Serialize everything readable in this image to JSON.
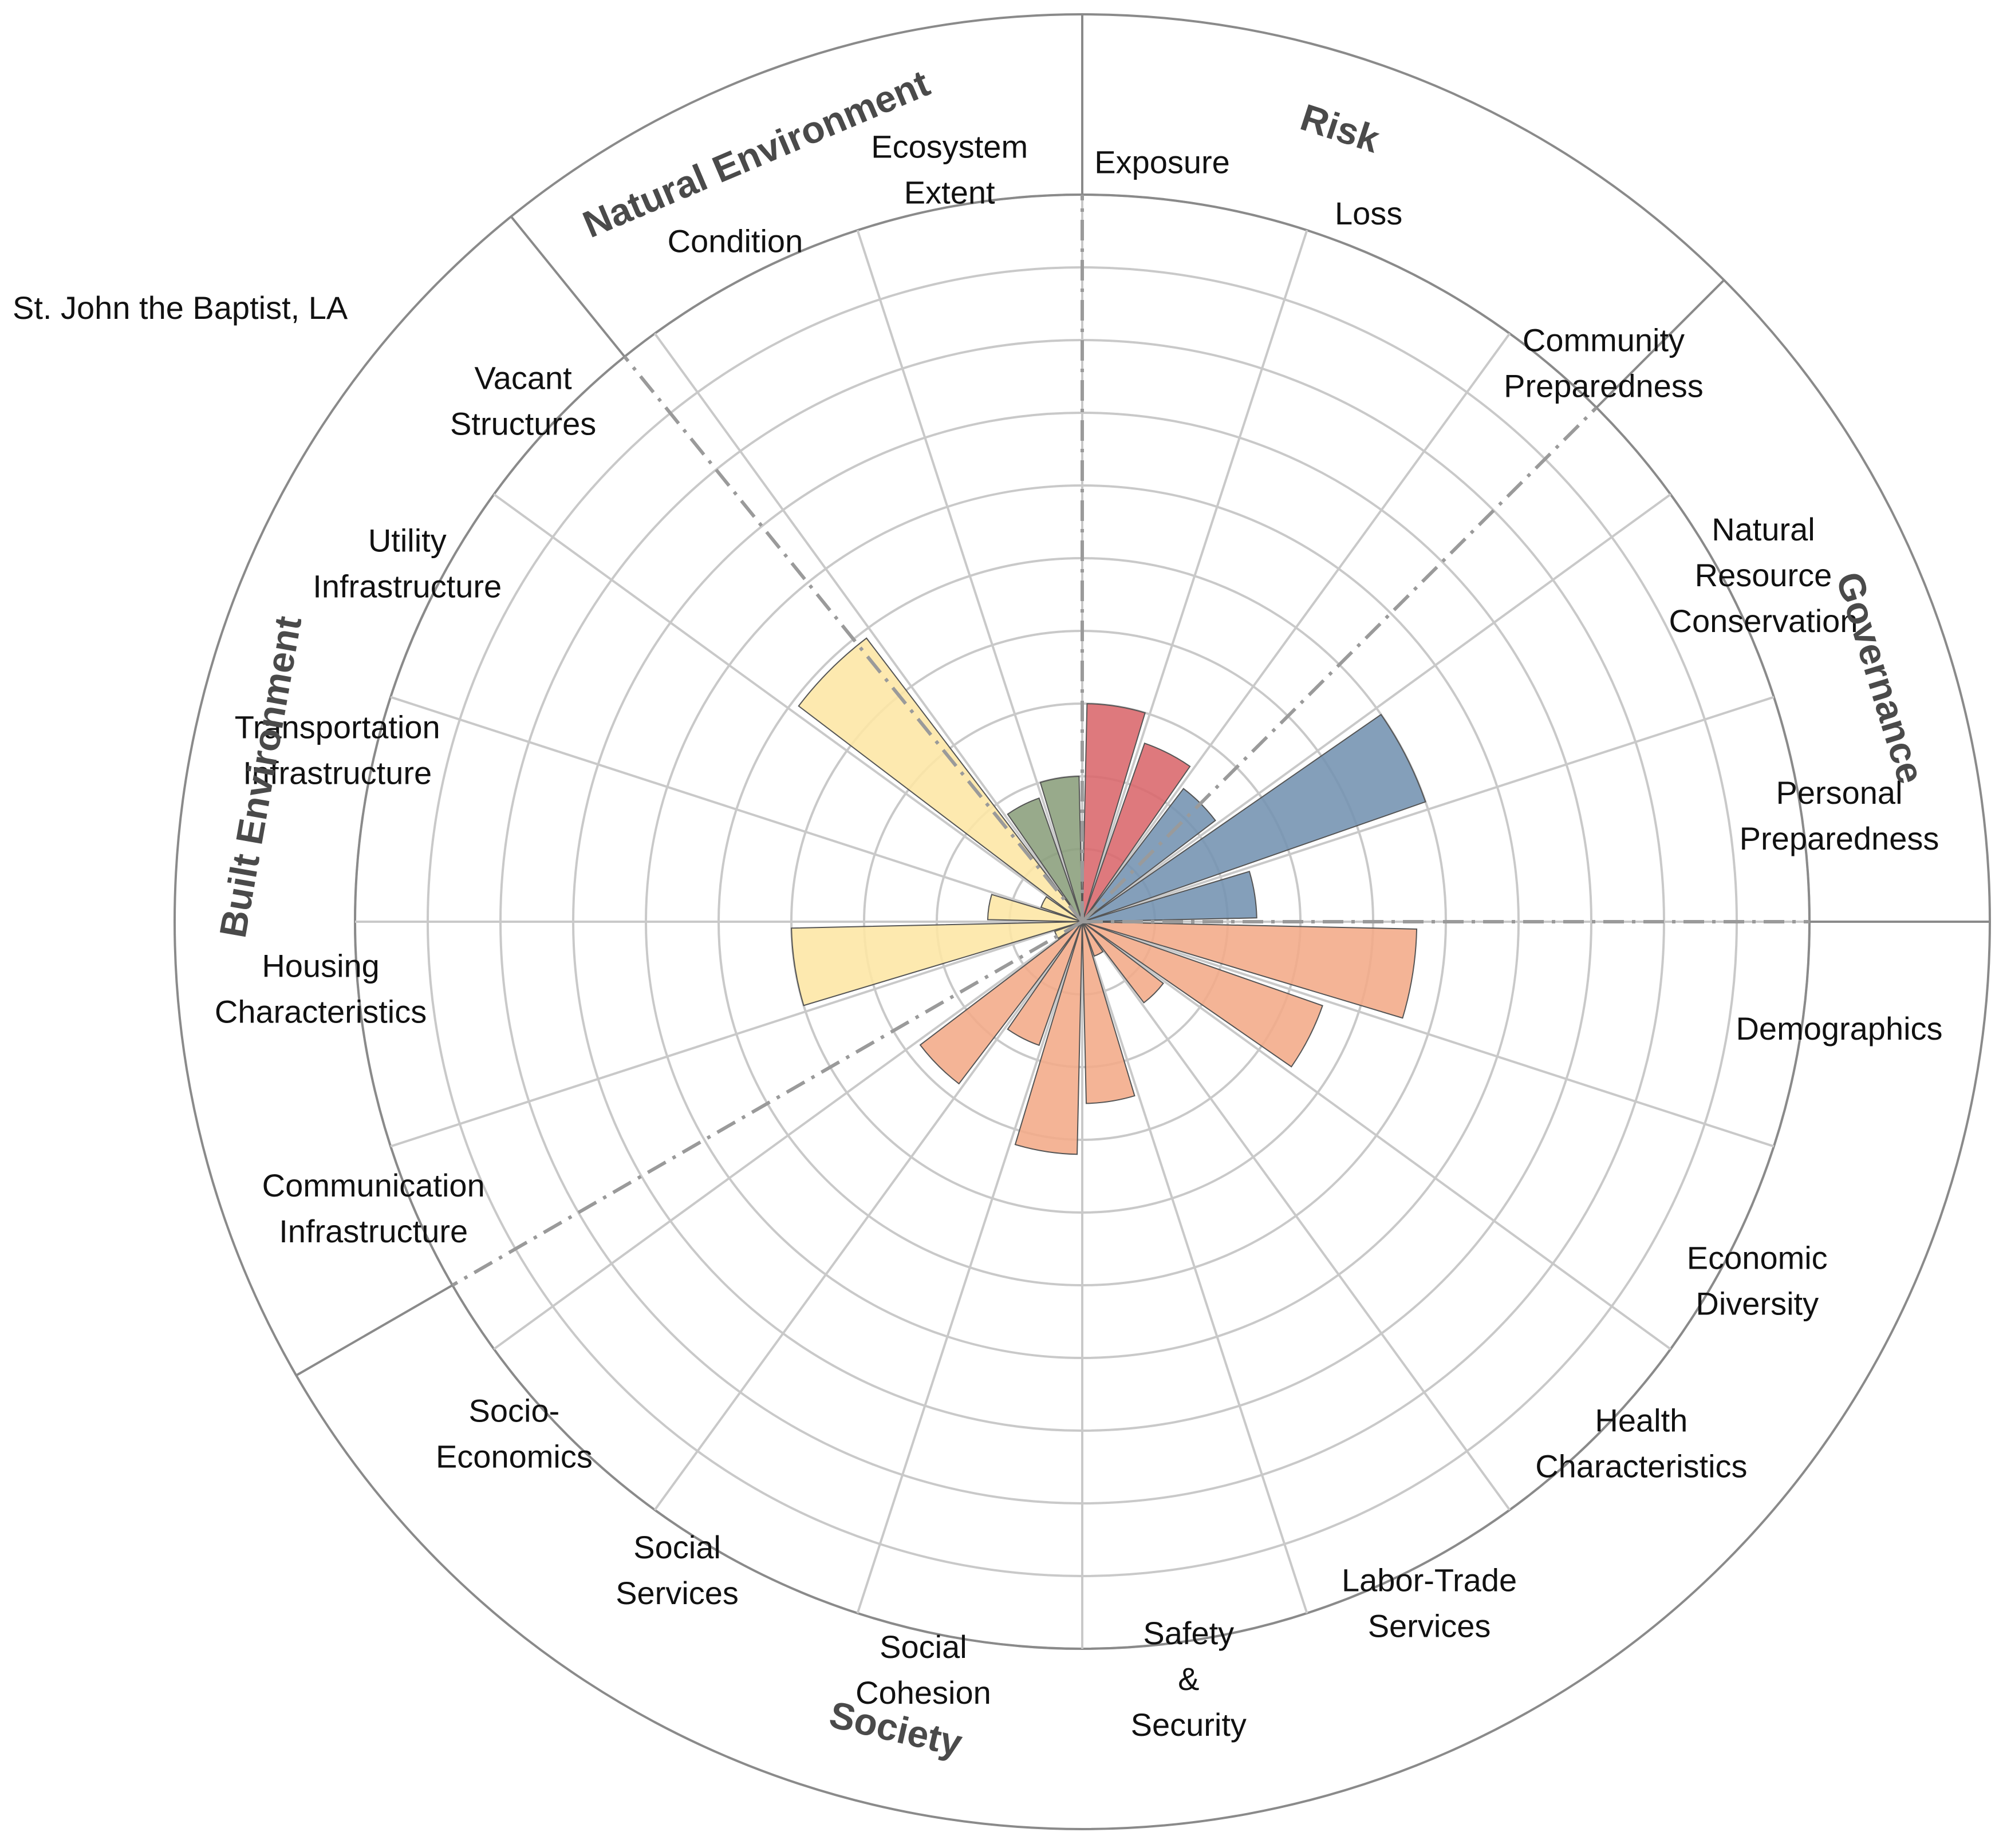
{
  "chart_data": {
    "type": "polar-bar",
    "title": "St. John the Baptist, LA",
    "rmax": 10,
    "rings": [
      1,
      2,
      3,
      4,
      5,
      6,
      7,
      8,
      9,
      10
    ],
    "groups": [
      {
        "name": "Risk",
        "color": "#d9666b",
        "label_angle": 18
      },
      {
        "name": "Governance",
        "color": "#7392b0",
        "label_angle": 73
      },
      {
        "name": "Society",
        "color": "#f2aa87",
        "label_angle": 193
      },
      {
        "name": "Built Environment",
        "color": "#fde6a4",
        "label_angle": 280
      },
      {
        "name": "Natural Environment",
        "color": "#8a9e7b",
        "label_angle": 337
      }
    ],
    "boundaries": [
      0,
      45,
      90,
      240,
      321
    ],
    "categories": [
      {
        "name": "Exposure",
        "label": [
          "Exposure"
        ],
        "group": "Risk",
        "value": 3.0,
        "label_angle": 6
      },
      {
        "name": "Loss",
        "label": [
          "Loss"
        ],
        "group": "Risk",
        "value": 2.6,
        "label_angle": 22
      },
      {
        "name": "Community Preparedness",
        "label": [
          "Community",
          "Preparedness"
        ],
        "group": "Governance",
        "value": 2.3,
        "label_angle": 43
      },
      {
        "name": "Natural Resource Conservation",
        "label": [
          "Natural",
          "Resource",
          "Conservation"
        ],
        "group": "Governance",
        "value": 5.0,
        "label_angle": 63
      },
      {
        "name": "Personal Preparedness",
        "label": [
          "Personal",
          "Preparedness"
        ],
        "group": "Governance",
        "value": 2.4,
        "label_angle": 82
      },
      {
        "name": "Demographics",
        "label": [
          "Demographics"
        ],
        "group": "Society",
        "value": 4.6,
        "label_angle": 98
      },
      {
        "name": "Economic Diversity",
        "label": [
          "Economic",
          "Diversity"
        ],
        "group": "Society",
        "value": 3.5,
        "label_angle": 118
      },
      {
        "name": "Health Characteristics",
        "label": [
          "Health",
          "Characteristics"
        ],
        "group": "Society",
        "value": 1.4,
        "label_angle": 133
      },
      {
        "name": "Labor-Trade Services",
        "label": [
          "Labor-Trade",
          "Services"
        ],
        "group": "Society",
        "value": 0.5,
        "label_angle": 153
      },
      {
        "name": "Safety & Security",
        "label": [
          "Safety",
          "&",
          "Security"
        ],
        "group": "Society",
        "value": 2.5,
        "label_angle": 172
      },
      {
        "name": "Social Cohesion",
        "label": [
          "Social",
          "Cohesion"
        ],
        "group": "Society",
        "value": 3.2,
        "label_angle": 192
      },
      {
        "name": "Social Services",
        "label": [
          "Social",
          "Services"
        ],
        "group": "Society",
        "value": 1.8,
        "label_angle": 212
      },
      {
        "name": "Socio-Economics",
        "label": [
          "Socio-",
          "Economics"
        ],
        "group": "Society",
        "value": 2.8,
        "label_angle": 228
      },
      {
        "name": "Communication Infrastructure",
        "label": [
          "Communication",
          "Infrastructure"
        ],
        "group": "Built Environment",
        "value": 0.4,
        "label_angle": 248
      },
      {
        "name": "Housing Characteristics",
        "label": [
          "Housing",
          "Characteristics"
        ],
        "group": "Built Environment",
        "value": 4.0,
        "label_angle": 265
      },
      {
        "name": "Transportation Infrastructure",
        "label": [
          "Transportation",
          "Infrastructure"
        ],
        "group": "Built Environment",
        "value": 1.3,
        "label_angle": 283
      },
      {
        "name": "Utility Infrastructure",
        "label": [
          "Utility",
          "Infrastructure"
        ],
        "group": "Built Environment",
        "value": 0.6,
        "label_angle": 298
      },
      {
        "name": "Vacant Structures",
        "label": [
          "Vacant",
          "Structures"
        ],
        "group": "Built Environment",
        "value": 4.9,
        "label_angle": 313
      },
      {
        "name": "Condition",
        "label": [
          "Condition"
        ],
        "group": "Natural Environment",
        "value": 1.8,
        "label_angle": 333
      },
      {
        "name": "Ecosystem Extent",
        "label": [
          "Ecosystem",
          "Extent"
        ],
        "group": "Natural Environment",
        "value": 2.0,
        "label_angle": 350
      }
    ]
  }
}
